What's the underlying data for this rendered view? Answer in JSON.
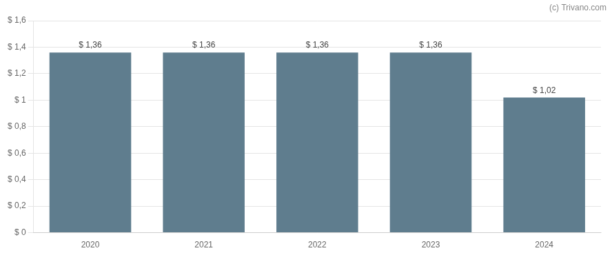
{
  "chart_data": {
    "type": "bar",
    "categories": [
      "2020",
      "2021",
      "2022",
      "2023",
      "2024"
    ],
    "values": [
      1.36,
      1.36,
      1.36,
      1.36,
      1.02
    ],
    "value_labels": [
      "$ 1,36",
      "$ 1,36",
      "$ 1,36",
      "$ 1,36",
      "$ 1,02"
    ],
    "data_labels": true,
    "color": "#5f7d8e",
    "ylim": [
      0,
      1.6
    ],
    "yticks": [
      {
        "value": 0,
        "label": "$ 0"
      },
      {
        "value": 0.2,
        "label": "$ 0,2"
      },
      {
        "value": 0.4,
        "label": "$ 0,4"
      },
      {
        "value": 0.6,
        "label": "$ 0,6"
      },
      {
        "value": 0.8,
        "label": "$ 0,8"
      },
      {
        "value": 1.0,
        "label": "$ 1"
      },
      {
        "value": 1.2,
        "label": "$ 1,2"
      },
      {
        "value": 1.4,
        "label": "$ 1,4"
      },
      {
        "value": 1.6,
        "label": "$ 1,6"
      }
    ],
    "grid": true,
    "annotations": [
      "(c) Trivano.com"
    ]
  }
}
